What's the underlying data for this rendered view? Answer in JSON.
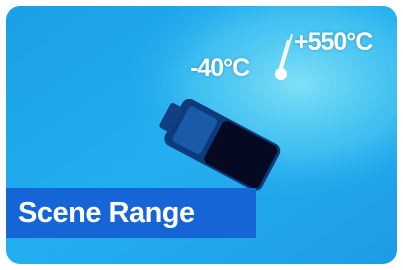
{
  "overlay": {
    "min_temp": "-40°C",
    "max_temp": "+550°C"
  },
  "label": "Scene Range"
}
